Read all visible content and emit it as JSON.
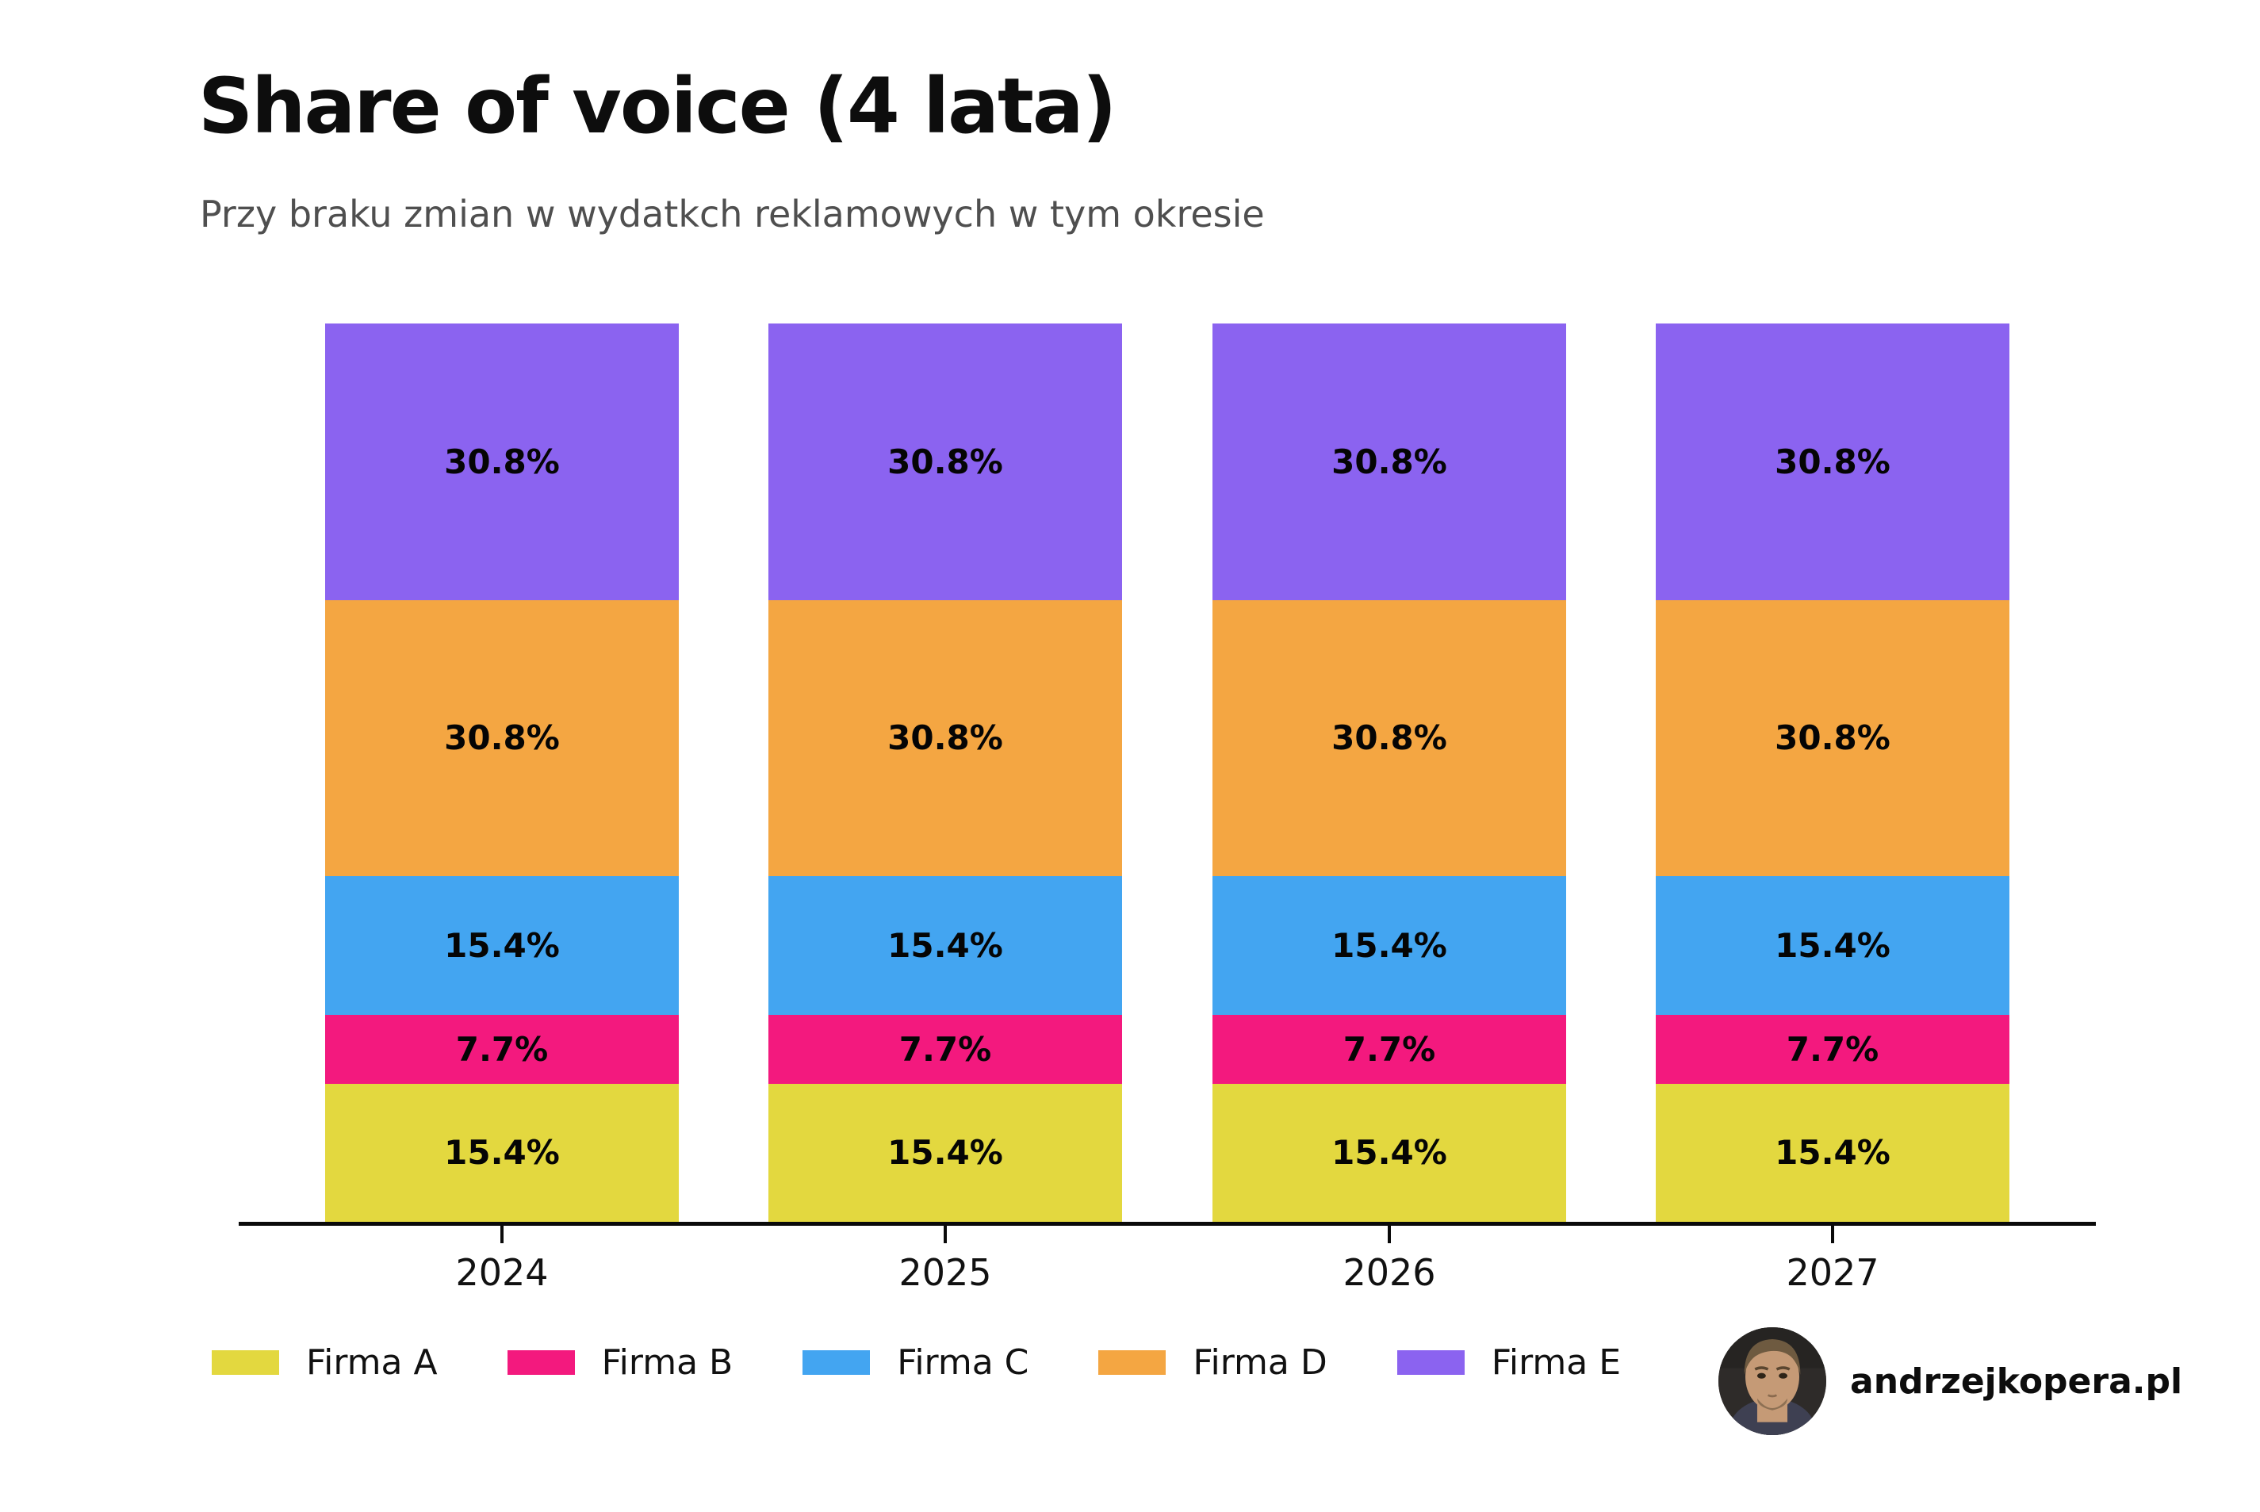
{
  "page": {
    "background": "#ffffff",
    "watermark_text": "andrzejkopera.pl"
  },
  "chart_data": {
    "type": "bar",
    "stacked": true,
    "title": "Share of voice (4 lata)",
    "subtitle": "Przy braku zmian w wydatkch reklamowych w tym okresie",
    "categories": [
      "2024",
      "2025",
      "2026",
      "2027"
    ],
    "series": [
      {
        "name": "Firma A",
        "color": "#e3d83f",
        "values": [
          15.4,
          15.4,
          15.4,
          15.4
        ]
      },
      {
        "name": "Firma B",
        "color": "#f3197e",
        "values": [
          7.7,
          7.7,
          7.7,
          7.7
        ]
      },
      {
        "name": "Firma C",
        "color": "#43a5f1",
        "values": [
          15.4,
          15.4,
          15.4,
          15.4
        ]
      },
      {
        "name": "Firma D",
        "color": "#f4a642",
        "values": [
          30.8,
          30.8,
          30.8,
          30.8
        ]
      },
      {
        "name": "Firma E",
        "color": "#8b63f0",
        "values": [
          30.8,
          30.8,
          30.8,
          30.8
        ]
      }
    ],
    "stack_order_bottom_to_top": [
      "Firma A",
      "Firma B",
      "Firma C",
      "Firma D",
      "Firma E"
    ],
    "value_label_suffix": "%",
    "value_labels": [
      "15.4%",
      "7.7%",
      "15.4%",
      "30.8%",
      "30.8%"
    ],
    "xlabel": "",
    "ylabel": "",
    "ylim": [
      0,
      100
    ],
    "grid": false,
    "legend_position": "bottom-left",
    "axis_color": "#0a0a0a",
    "text_color": "#0d0d0d",
    "subtitle_color": "#4f4f4f"
  }
}
